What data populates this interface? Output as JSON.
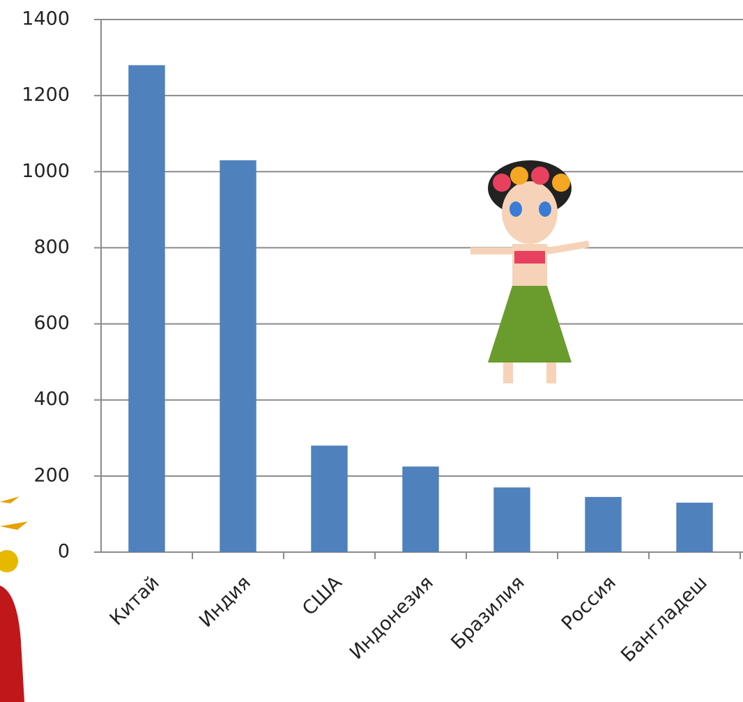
{
  "chart_data": {
    "type": "bar",
    "categories": [
      "Китай",
      "Индия",
      "США",
      "Индонезия",
      "Бразилия",
      "Россия",
      "Бангладеш"
    ],
    "values": [
      1280,
      1030,
      280,
      225,
      170,
      145,
      130
    ],
    "color": "#4f81bd",
    "ylim": [
      0,
      1400
    ],
    "yticks": [
      0,
      200,
      400,
      600,
      800,
      1000,
      1200,
      1400
    ],
    "grid": true
  }
}
